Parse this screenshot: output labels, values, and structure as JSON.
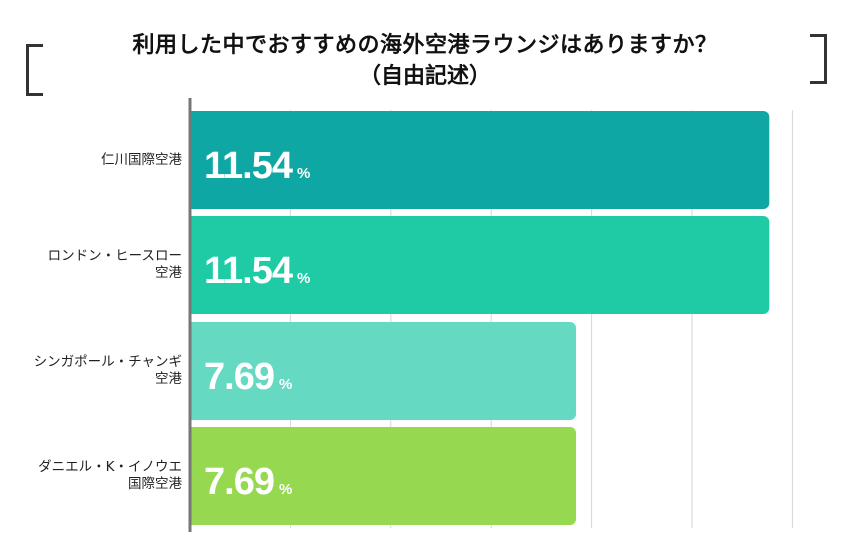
{
  "chart_data": {
    "type": "bar",
    "orientation": "horizontal",
    "title": "利用した中でおすすめの海外空港ラウンジはありますか？",
    "subtitle": "（自由記述）",
    "categories": [
      [
        "仁川国際空港"
      ],
      [
        "ロンドン・ヒースロー",
        "空港"
      ],
      [
        "シンガポール・チャンギ",
        "空港"
      ],
      [
        "ダニエル・K・イノウエ",
        "国際空港"
      ]
    ],
    "values": [
      11.54,
      11.54,
      7.69,
      7.69
    ],
    "value_labels": [
      "11.54",
      "11.54",
      "7.69",
      "7.69"
    ],
    "unit": "%",
    "xlim": [
      0,
      15
    ],
    "grid": true,
    "colors": [
      "#0fa7a3",
      "#1fcba5",
      "#66d9c3",
      "#96d850"
    ]
  }
}
